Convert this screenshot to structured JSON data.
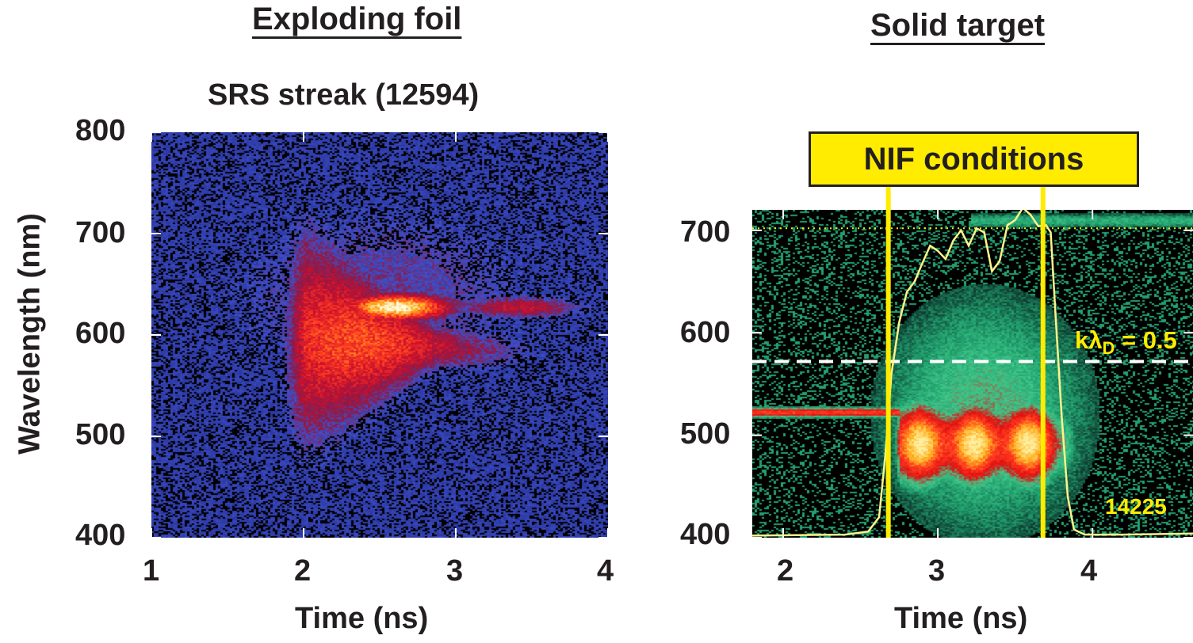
{
  "headings": {
    "left": "Exploding foil",
    "right": "Solid target"
  },
  "chart_data": [
    {
      "type": "heatmap",
      "title": "SRS streak (12594)",
      "xlabel": "Time (ns)",
      "ylabel": "Wavelength (nm)",
      "xlim": [
        1,
        4
      ],
      "ylim": [
        400,
        800
      ],
      "xticks": [
        "1",
        "2",
        "3",
        "4"
      ],
      "yticks": [
        "400",
        "500",
        "600",
        "700",
        "800"
      ],
      "colormap": [
        "#000000",
        "#1f2a8a",
        "#3f4fc8",
        "#8a1a4a",
        "#c8102e",
        "#ff3b20",
        "#ffb020",
        "#fffbe0"
      ],
      "features": [
        {
          "name": "peak",
          "t_center": 2.6,
          "wavelength_center": 628,
          "intensity": 1.0
        }
      ]
    },
    {
      "type": "heatmap",
      "xlabel": "Time (ns)",
      "ylabel": "",
      "xlim": [
        1.8,
        4.65
      ],
      "ylim": [
        400,
        720
      ],
      "xticks": [
        "2",
        "3",
        "4"
      ],
      "yticks": [
        "400",
        "500",
        "600",
        "700"
      ],
      "colormap": [
        "#000000",
        "#0f3a30",
        "#1f9a6a",
        "#3fc88a",
        "#e01010",
        "#ff3b20",
        "#ffb020",
        "#fff0a0"
      ],
      "annotations": {
        "box_label": "NIF conditions",
        "nif_window_ns": [
          2.68,
          3.68
        ],
        "kld_label_main": "kλ",
        "kld_label_sub": "D",
        "kld_label_tail": " = 0.5",
        "kld_wavelength": 572,
        "dotted_line_wavelength": 702,
        "shot_label": "14225"
      },
      "trace": {
        "name": "overlay",
        "x": [
          1.8,
          2.4,
          2.55,
          2.62,
          2.66,
          2.7,
          2.75,
          2.8,
          2.85,
          2.9,
          2.95,
          3.0,
          3.05,
          3.1,
          3.15,
          3.2,
          3.25,
          3.3,
          3.35,
          3.4,
          3.45,
          3.5,
          3.55,
          3.6,
          3.65,
          3.7,
          3.73,
          3.76,
          3.8,
          3.84,
          3.88,
          3.95,
          4.2,
          4.65
        ],
        "y": [
          402,
          403,
          406,
          420,
          480,
          560,
          610,
          640,
          650,
          668,
          685,
          680,
          672,
          690,
          700,
          685,
          702,
          698,
          660,
          670,
          705,
          710,
          722,
          715,
          704,
          705,
          698,
          620,
          520,
          440,
          408,
          403,
          403,
          404
        ]
      },
      "features": [
        {
          "name": "blob",
          "t_range": [
            2.7,
            3.95
          ],
          "wavelength_center": 492,
          "intensity": 1.0
        },
        {
          "name": "green-halo",
          "t_range": [
            2.5,
            4.5
          ],
          "wavelength_range": [
            410,
            660
          ],
          "intensity": 0.45
        },
        {
          "name": "red-band",
          "t_range": [
            1.8,
            2.7
          ],
          "wavelength_center": 523,
          "intensity": 0.7
        },
        {
          "name": "top-band",
          "t_range": [
            3.2,
            4.5
          ],
          "wavelength_center": 710,
          "intensity": 0.35
        }
      ]
    }
  ]
}
